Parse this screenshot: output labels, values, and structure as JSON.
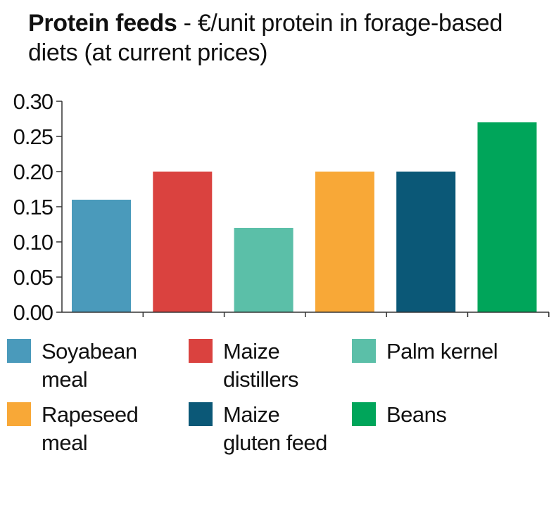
{
  "chart_data": {
    "type": "bar",
    "title_bold": "Protein feeds",
    "title_rest": " - €/unit protein in forage-based diets (at current prices)",
    "categories": [
      "Soyabean meal",
      "Maize distillers",
      "Palm kernel",
      "Rapeseed meal",
      "Maize gluten feed",
      "Beans"
    ],
    "values": [
      0.16,
      0.2,
      0.12,
      0.2,
      0.2,
      0.27
    ],
    "colors": [
      "#4a9abb",
      "#da423f",
      "#5bbfa8",
      "#f8a837",
      "#0b5877",
      "#00a55a"
    ],
    "yticks": [
      "0.00",
      "0.05",
      "0.10",
      "0.15",
      "0.20",
      "0.25",
      "0.30"
    ],
    "ylim": [
      0,
      0.3
    ],
    "xlabel": "",
    "ylabel": "",
    "legend": [
      "Soyabean meal",
      "Maize distillers",
      "Palm kernel",
      "Rapeseed meal",
      "Maize gluten feed",
      "Beans"
    ],
    "legend_placement": "bottom"
  }
}
